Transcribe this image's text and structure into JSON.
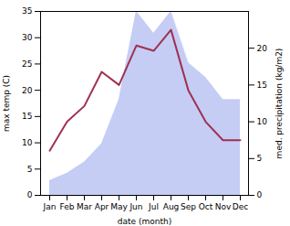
{
  "chart_data": {
    "type": "line",
    "categories": [
      "Jan",
      "Feb",
      "Mar",
      "Apr",
      "May",
      "Jun",
      "Jul",
      "Aug",
      "Sep",
      "Oct",
      "Nov",
      "Dec"
    ],
    "xlabel": "date (month)",
    "ylabel": "max temp (C)",
    "y2label": "med. precipitation (kg/m2)",
    "ylim": [
      0,
      35
    ],
    "yticks": [
      0,
      5,
      10,
      15,
      20,
      25,
      30,
      35
    ],
    "y2lim": [
      0,
      25
    ],
    "y2ticks": [
      0,
      5,
      10,
      15,
      20
    ],
    "grid": false,
    "series": [
      {
        "type": "area",
        "axis": "y2",
        "color": "#c5cdf5",
        "values": [
          2.0,
          3.0,
          4.5,
          7.0,
          13.0,
          25.0,
          22.0,
          25.0,
          18.0,
          16.0,
          13.0,
          13.0
        ]
      },
      {
        "type": "line",
        "color": "#a03050",
        "values": [
          8.5,
          14.0,
          17.0,
          23.5,
          21.0,
          28.5,
          27.5,
          31.5,
          20.0,
          14.0,
          10.5,
          10.5
        ]
      }
    ]
  }
}
